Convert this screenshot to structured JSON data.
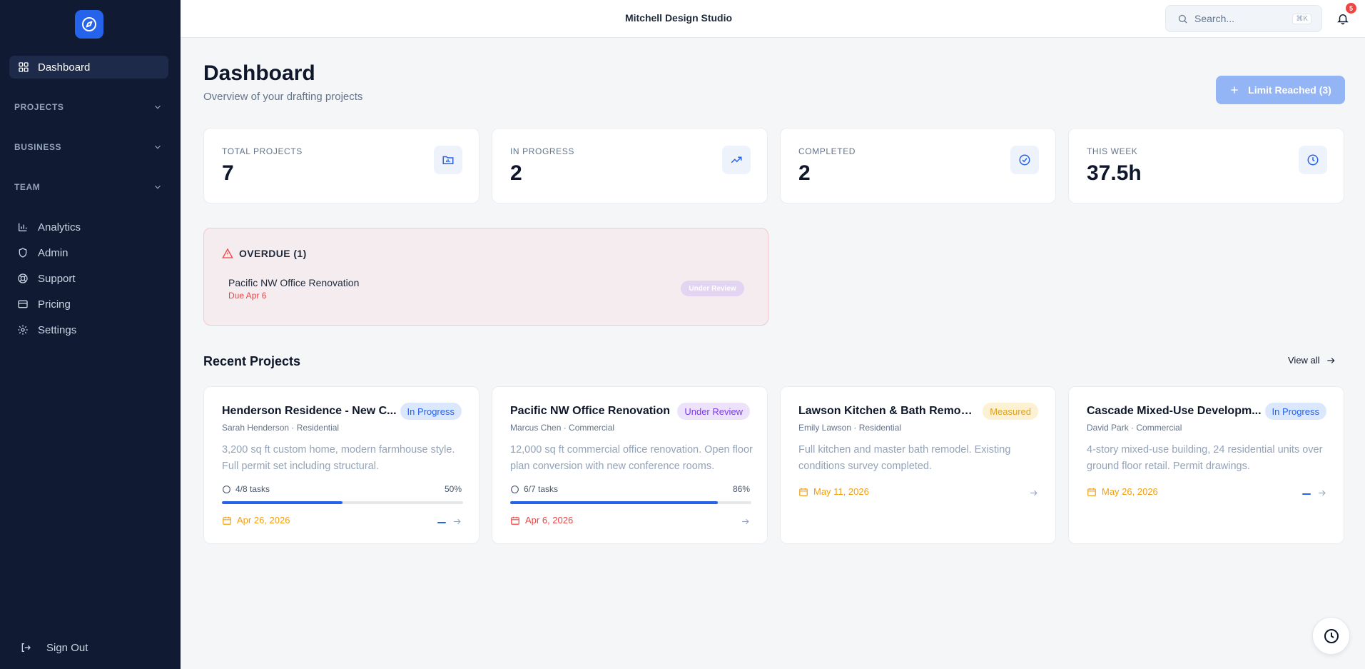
{
  "app": {
    "studio_name": "Mitchell Design Studio"
  },
  "sidebar": {
    "active": {
      "label": "Dashboard",
      "icon": "grid-icon"
    },
    "sections": [
      {
        "label": "PROJECTS"
      },
      {
        "label": "BUSINESS"
      },
      {
        "label": "TEAM"
      }
    ],
    "items": [
      {
        "label": "Analytics",
        "icon": "bar-chart-icon"
      },
      {
        "label": "Admin",
        "icon": "shield-icon"
      },
      {
        "label": "Support",
        "icon": "lifebuoy-icon"
      },
      {
        "label": "Pricing",
        "icon": "credit-card-icon"
      },
      {
        "label": "Settings",
        "icon": "gear-icon"
      }
    ],
    "sign_out": "Sign Out"
  },
  "header": {
    "search_placeholder": "Search...",
    "search_shortcut": "⌘K",
    "notification_count": "5"
  },
  "page": {
    "title": "Dashboard",
    "subtitle": "Overview of your drafting projects",
    "limit_button": "Limit Reached (3)"
  },
  "stats": [
    {
      "label": "TOTAL PROJECTS",
      "value": "7",
      "icon": "folder-icon"
    },
    {
      "label": "IN PROGRESS",
      "value": "2",
      "icon": "trending-up-icon"
    },
    {
      "label": "COMPLETED",
      "value": "2",
      "icon": "check-circle-icon"
    },
    {
      "label": "THIS WEEK",
      "value": "37.5h",
      "icon": "clock-icon"
    }
  ],
  "overdue": {
    "heading": "OVERDUE (1)",
    "project": "Pacific NW Office Renovation",
    "due": "Due Apr 6",
    "status": "Under Review"
  },
  "recent": {
    "title": "Recent Projects",
    "view_all": "View all",
    "projects": [
      {
        "title": "Henderson Residence - New C...",
        "status": "In Progress",
        "client": "Sarah Henderson · Residential",
        "description": "3,200 sq ft custom home, modern farmhouse style. Full permit set including structural.",
        "tasks": "4/8 tasks",
        "percent": "50%",
        "progress": 0.5,
        "date": "Apr 26, 2026"
      },
      {
        "title": "Pacific NW Office Renovation",
        "status": "Under Review",
        "client": "Marcus Chen · Commercial",
        "description": "12,000 sq ft commercial office renovation. Open floor plan conversion with new conference rooms.",
        "tasks": "6/7 tasks",
        "percent": "86%",
        "progress": 0.86,
        "date": "Apr 6, 2026"
      },
      {
        "title": "Lawson Kitchen & Bath Remodel",
        "status": "Measured",
        "client": "Emily Lawson · Residential",
        "description": "Full kitchen and master bath remodel. Existing conditions survey completed.",
        "date": "May 11, 2026"
      },
      {
        "title": "Cascade Mixed-Use Developm...",
        "status": "In Progress",
        "client": "David Park · Commercial",
        "description": "4-story mixed-use building, 24 residential units over ground floor retail. Permit drawings.",
        "date": "May 26, 2026"
      }
    ]
  },
  "colors": {
    "sidebar_bg": "#111a33",
    "accent": "#2563eb",
    "danger": "#ef4444",
    "warning": "#f59e0b"
  }
}
